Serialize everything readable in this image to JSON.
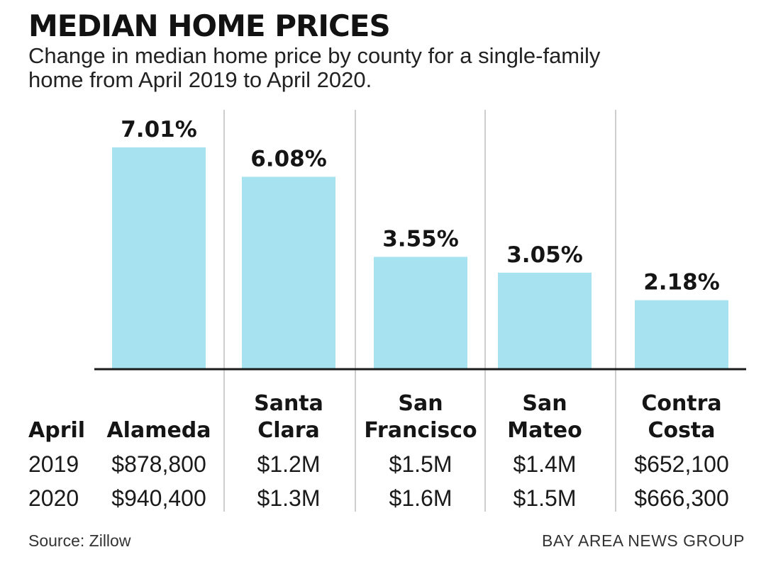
{
  "header": {
    "title": "MEDIAN HOME PRICES",
    "subtitle_line1": "Change in median home price by county for a single-family",
    "subtitle_line2": "home from April 2019 to April 2020."
  },
  "colors": {
    "bar": "#a7e2f0",
    "axis": "#1a1a1a",
    "divider": "#bdbdbd"
  },
  "chart_data": {
    "type": "bar",
    "title": "MEDIAN HOME PRICES",
    "categories": [
      "Alameda",
      "Santa Clara",
      "San Francisco",
      "San Mateo",
      "Contra Costa"
    ],
    "category_lines": [
      [
        "Alameda"
      ],
      [
        "Santa",
        "Clara"
      ],
      [
        "San",
        "Francisco"
      ],
      [
        "San",
        "Mateo"
      ],
      [
        "Contra",
        "Costa"
      ]
    ],
    "values": [
      7.01,
      6.08,
      3.55,
      3.05,
      2.18
    ],
    "value_labels": [
      "7.01%",
      "6.08%",
      "3.55%",
      "3.05%",
      "2.18%"
    ],
    "ylim": [
      0,
      7.01
    ],
    "grid": false,
    "table": {
      "header_label": "April",
      "rows": [
        {
          "label": "2019",
          "values": [
            "$878,800",
            "$1.2M",
            "$1.5M",
            "$1.4M",
            "$652,100"
          ]
        },
        {
          "label": "2020",
          "values": [
            "$940,400",
            "$1.3M",
            "$1.6M",
            "$1.5M",
            "$666,300"
          ]
        }
      ]
    }
  },
  "footer": {
    "source": "Source: Zillow",
    "credit": "BAY AREA NEWS GROUP"
  }
}
